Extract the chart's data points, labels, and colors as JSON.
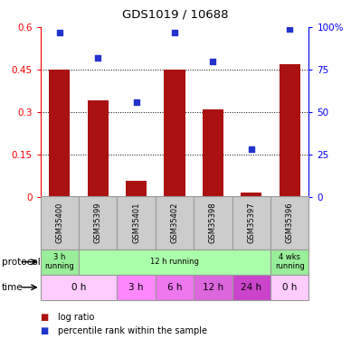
{
  "title": "GDS1019 / 10688",
  "samples": [
    "GSM35400",
    "GSM35399",
    "GSM35401",
    "GSM35402",
    "GSM35398",
    "GSM35397",
    "GSM35396"
  ],
  "log_ratio": [
    0.45,
    0.34,
    0.055,
    0.45,
    0.31,
    0.015,
    0.47
  ],
  "percentile_rank": [
    97,
    82,
    56,
    97,
    80,
    28,
    99
  ],
  "ylim_left": [
    0,
    0.6
  ],
  "ylim_right": [
    0,
    100
  ],
  "yticks_left": [
    0,
    0.15,
    0.3,
    0.45,
    0.6
  ],
  "yticks_right": [
    0,
    25,
    50,
    75,
    100
  ],
  "bar_color": "#aa1111",
  "dot_color": "#2233cc",
  "protocol_row": [
    {
      "label": "3 h\nrunning",
      "span": [
        0,
        1
      ],
      "color": "#99ee99"
    },
    {
      "label": "12 h running",
      "span": [
        1,
        6
      ],
      "color": "#aaffaa"
    },
    {
      "label": "4 wks\nrunning",
      "span": [
        6,
        7
      ],
      "color": "#99ee99"
    }
  ],
  "time_row": [
    {
      "label": "0 h",
      "span": [
        0,
        2
      ],
      "color": "#ffccff"
    },
    {
      "label": "3 h",
      "span": [
        2,
        3
      ],
      "color": "#ff88ff"
    },
    {
      "label": "6 h",
      "span": [
        3,
        4
      ],
      "color": "#ee77ee"
    },
    {
      "label": "12 h",
      "span": [
        4,
        5
      ],
      "color": "#dd66dd"
    },
    {
      "label": "24 h",
      "span": [
        5,
        6
      ],
      "color": "#cc44cc"
    },
    {
      "label": "0 h",
      "span": [
        6,
        7
      ],
      "color": "#ffccff"
    }
  ],
  "background_color": "#ffffff",
  "label_row_color": "#cccccc",
  "border_color": "#999999"
}
